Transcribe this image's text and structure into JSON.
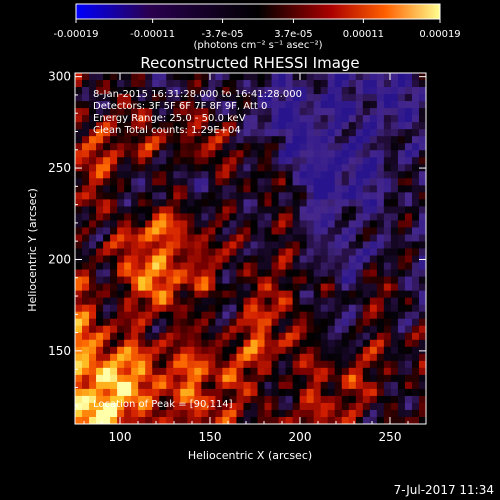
{
  "chart_data": {
    "type": "heatmap",
    "title": "Reconstructed RHESSI Image",
    "xlabel": "Heliocentric X (arcsec)",
    "ylabel": "Heliocentric Y (arcsec)",
    "xlim": [
      75,
      270
    ],
    "ylim": [
      110,
      302
    ],
    "xticks": [
      100,
      150,
      200,
      250
    ],
    "yticks": [
      150,
      200,
      250,
      300
    ],
    "grid": false,
    "colorbar": {
      "ticks": [
        "-0.00019",
        "-0.00011",
        "-3.7e-05",
        "3.7e-05",
        "0.00011",
        "0.00019"
      ],
      "range": [
        -0.00019,
        0.00019
      ],
      "unit_label": "(photons cm⁻² s⁻¹ asec⁻²)",
      "colors": [
        "#0000ff",
        "#2a0050",
        "#000000",
        "#aa0000",
        "#ff6000",
        "#ffff90"
      ]
    },
    "annotations": [
      "8-Jan-2015 16:31:28.000 to 16:41:28.000",
      "Detectors: 3F 5F 6F 7F 8F 9F, Att 0",
      "Energy Range: 25.0 - 50.0 keV",
      "Clean      Total counts: 1.29E+04",
      "Location of Peak = [90,114]"
    ],
    "peak_location": [
      90,
      114
    ],
    "footer_date": "7-Jul-2017 11:34"
  }
}
